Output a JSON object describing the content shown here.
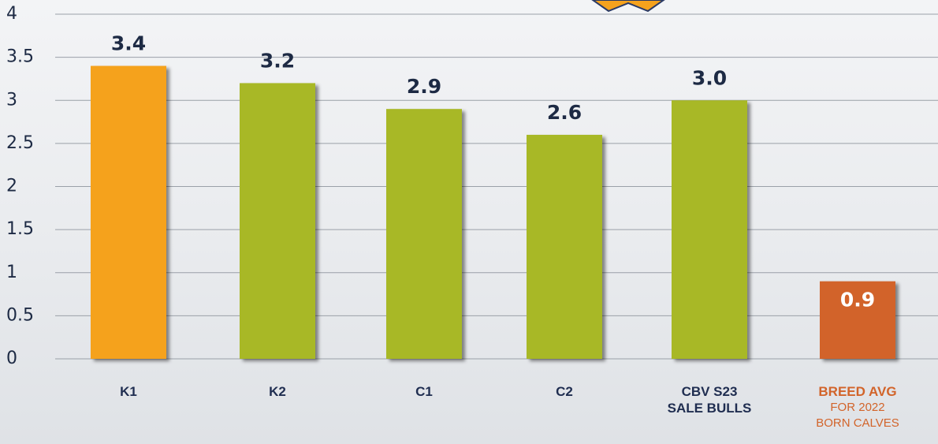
{
  "chart_data": {
    "type": "bar",
    "categories": [
      "K1",
      "K2",
      "C1",
      "C2",
      "CBV S23\nSALE BULLS",
      "BREED AVG"
    ],
    "category_note": "FOR 2022\nBORN CALVES",
    "values": [
      3.4,
      3.2,
      2.9,
      2.6,
      3.0,
      0.9
    ],
    "value_labels": [
      "3.4",
      "3.2",
      "2.9",
      "2.6",
      "3.0",
      "0.9"
    ],
    "colors": [
      "#f5a21d",
      "#a8b826",
      "#a8b826",
      "#a8b826",
      "#a8b826",
      "#d2642a"
    ],
    "ylim": [
      0,
      4
    ],
    "yticks": [
      0,
      0.5,
      1,
      1.5,
      2,
      2.5,
      3,
      3.5,
      4
    ],
    "grid": true
  }
}
